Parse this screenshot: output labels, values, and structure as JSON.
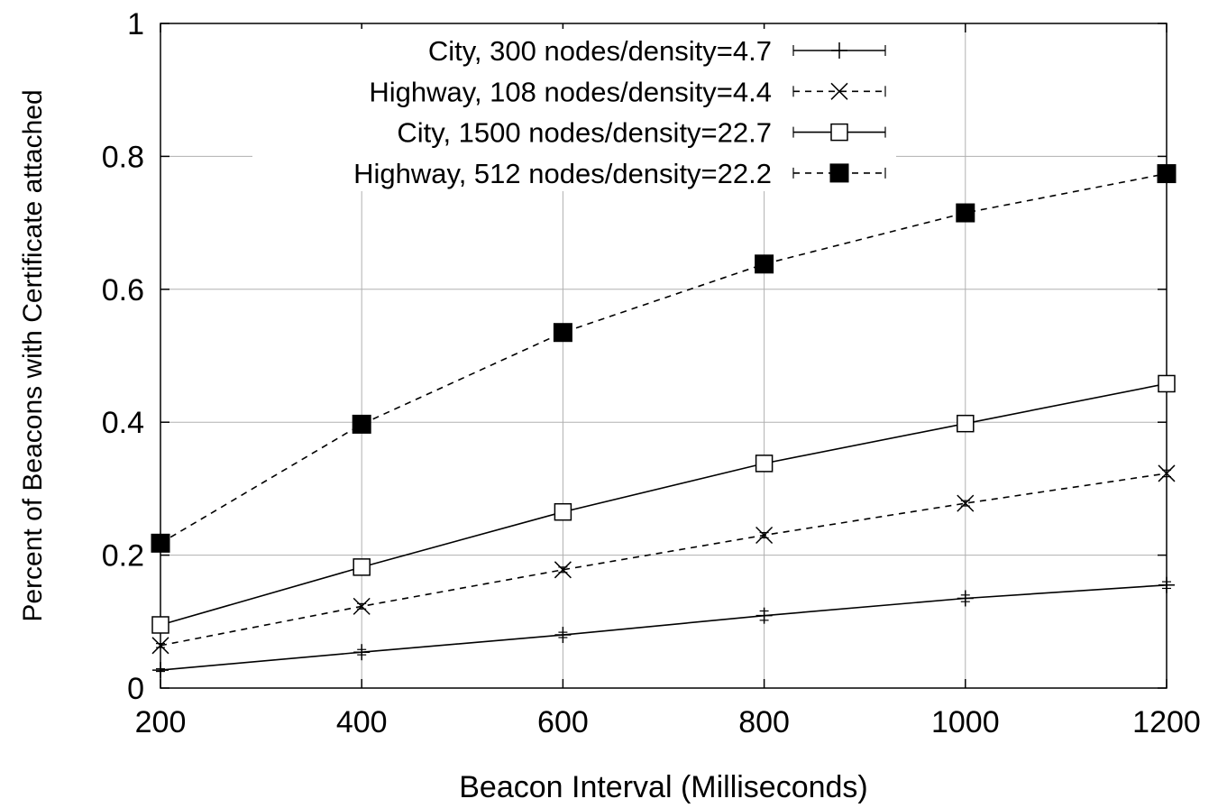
{
  "chart_data": {
    "type": "line",
    "title": "",
    "xlabel": "Beacon Interval (Milliseconds)",
    "ylabel": "Percent of Beacons with Certificate attached",
    "xlim": [
      200,
      1200
    ],
    "ylim": [
      0,
      1
    ],
    "xticks": [
      200,
      400,
      600,
      800,
      1000,
      1200
    ],
    "xtick_labels": [
      "200",
      "400",
      "600",
      "800",
      "1000",
      "1200"
    ],
    "yticks": [
      0,
      0.2,
      0.4,
      0.6,
      0.8,
      1
    ],
    "ytick_labels": [
      "0",
      "0.2",
      "0.4",
      "0.6",
      "0.8",
      "1"
    ],
    "grid": true,
    "legend_position": "top-right",
    "x": [
      200,
      400,
      600,
      800,
      1000,
      1200
    ],
    "series": [
      {
        "name": "City, 300 nodes/density=4.7",
        "values": [
          0.027,
          0.054,
          0.08,
          0.109,
          0.135,
          0.155
        ],
        "error": [
          0.002,
          0.004,
          0.004,
          0.007,
          0.005,
          0.005
        ],
        "marker": "plus",
        "dash": "solid",
        "color": "#000000"
      },
      {
        "name": "Highway, 108 nodes/density=4.4",
        "values": [
          0.064,
          0.123,
          0.178,
          0.23,
          0.278,
          0.323
        ],
        "error": [
          0.003,
          0.004,
          0.004,
          0.004,
          0.004,
          0.005
        ],
        "marker": "cross",
        "dash": "dashed",
        "color": "#000000"
      },
      {
        "name": "City, 1500 nodes/density=22.7",
        "values": [
          0.095,
          0.182,
          0.265,
          0.338,
          0.398,
          0.458
        ],
        "error": [
          0.003,
          0.004,
          0.003,
          0.003,
          0.003,
          0.004
        ],
        "marker": "open-square",
        "dash": "solid",
        "color": "#000000"
      },
      {
        "name": "Highway, 512 nodes/density=22.2",
        "values": [
          0.218,
          0.397,
          0.535,
          0.638,
          0.715,
          0.774
        ],
        "error": [
          0.002,
          0.003,
          0.003,
          0.003,
          0.003,
          0.003
        ],
        "marker": "filled-square",
        "dash": "dashed",
        "color": "#000000"
      }
    ]
  }
}
